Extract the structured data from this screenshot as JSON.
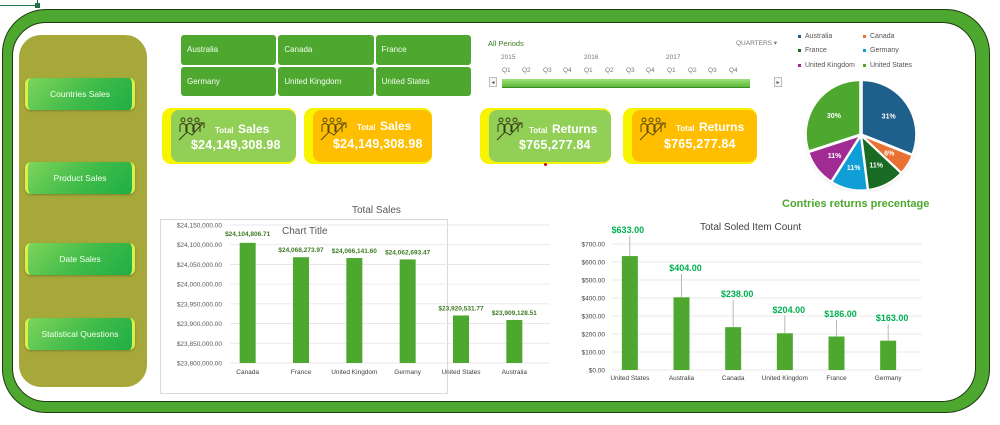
{
  "sidebar": {
    "items": [
      {
        "label": "Countries Sales"
      },
      {
        "label": "Product Sales"
      },
      {
        "label": "Date Sales"
      },
      {
        "label": "Statistical Questions"
      }
    ]
  },
  "slicer": {
    "items": [
      {
        "label": "Australia"
      },
      {
        "label": "Canada"
      },
      {
        "label": "France"
      },
      {
        "label": "Germany"
      },
      {
        "label": "United Kingdom"
      },
      {
        "label": "United States"
      }
    ]
  },
  "timeline": {
    "title": "All Periods",
    "level": "QUARTERS ▾",
    "years": [
      "2015",
      "2016",
      "2017"
    ],
    "quarters": [
      "Q1",
      "Q2",
      "Q3",
      "Q4",
      "Q1",
      "Q2",
      "Q3",
      "Q4",
      "Q1",
      "Q2",
      "Q3",
      "Q4"
    ],
    "left_arrow": "◂",
    "right_arrow": "▸"
  },
  "kpis": [
    {
      "label_small": "Total",
      "label_big": "Sales",
      "value": "$24,149,308.98",
      "style": "green"
    },
    {
      "label_small": "Total",
      "label_big": "Sales",
      "value": "$24,149,308.98",
      "style": "orange"
    },
    {
      "label_small": "Total",
      "label_big": "Returns",
      "value": "$765,277.84",
      "style": "green"
    },
    {
      "label_small": "Total",
      "label_big": "Returns",
      "value": "$765,277.84",
      "style": "orange"
    }
  ],
  "colors": {
    "accent_green": "#4ea72e",
    "sidebar_olive": "#a6a83a",
    "kpi_green": "#92cf56",
    "kpi_orange": "#ffbf00",
    "kpi_yellow": "#f7f400",
    "label_green": "#00b050",
    "bar_label_green": "#3c7d22"
  },
  "chart_data": [
    {
      "type": "bar",
      "title": "Total Sales",
      "ghost_title": "Chart Title",
      "categories": [
        "Canada",
        "France",
        "United Kingdom",
        "Germany",
        "United States",
        "Australia"
      ],
      "values": [
        24104806.71,
        24068273.97,
        24066141.6,
        24062693.47,
        23920531.77,
        23909128.51
      ],
      "value_labels": [
        "$24,104,806.71",
        "$24,068,273.97",
        "$24,066,141.60",
        "$24,062,693.47",
        "$23,920,531.77",
        "$23,909,128.51"
      ],
      "yticks": [
        "$24,150,000.00",
        "$24,100,000.00",
        "$24,050,000.00",
        "$24,000,000.00",
        "$23,950,000.00",
        "$23,900,000.00",
        "$23,850,000.00",
        "$23,800,000.00"
      ],
      "ylim": [
        23800000,
        24150000
      ],
      "xlabel": "",
      "ylabel": "",
      "grid": true,
      "legend": "none"
    },
    {
      "type": "bar",
      "title": "Total Soled Item Count",
      "categories": [
        "United States",
        "Australia",
        "Canada",
        "United Kingdom",
        "France",
        "Germany"
      ],
      "values": [
        633,
        404,
        238,
        204,
        186,
        163
      ],
      "value_labels": [
        "$633.00",
        "$404.00",
        "$238.00",
        "$204.00",
        "$186.00",
        "$163.00"
      ],
      "yticks": [
        "$700.00",
        "$600.00",
        "$500.00",
        "$400.00",
        "$300.00",
        "$200.00",
        "$100.00",
        "$0.00"
      ],
      "ylim": [
        0,
        700
      ],
      "xlabel": "",
      "ylabel": "",
      "grid": true,
      "legend": "none"
    },
    {
      "type": "pie",
      "title": "Contries returns precentage",
      "categories": [
        "Australia",
        "Canada",
        "France",
        "Germany",
        "United Kingdom",
        "United States"
      ],
      "values": [
        31,
        6,
        11,
        11,
        11,
        30
      ],
      "value_labels": [
        "31%",
        "6%",
        "11%",
        "11%",
        "11%",
        "30%"
      ],
      "colors": [
        "#1f5f8b",
        "#e97132",
        "#196b24",
        "#0f9ed5",
        "#a02b93",
        "#4ea72e"
      ],
      "legend": "top"
    }
  ]
}
